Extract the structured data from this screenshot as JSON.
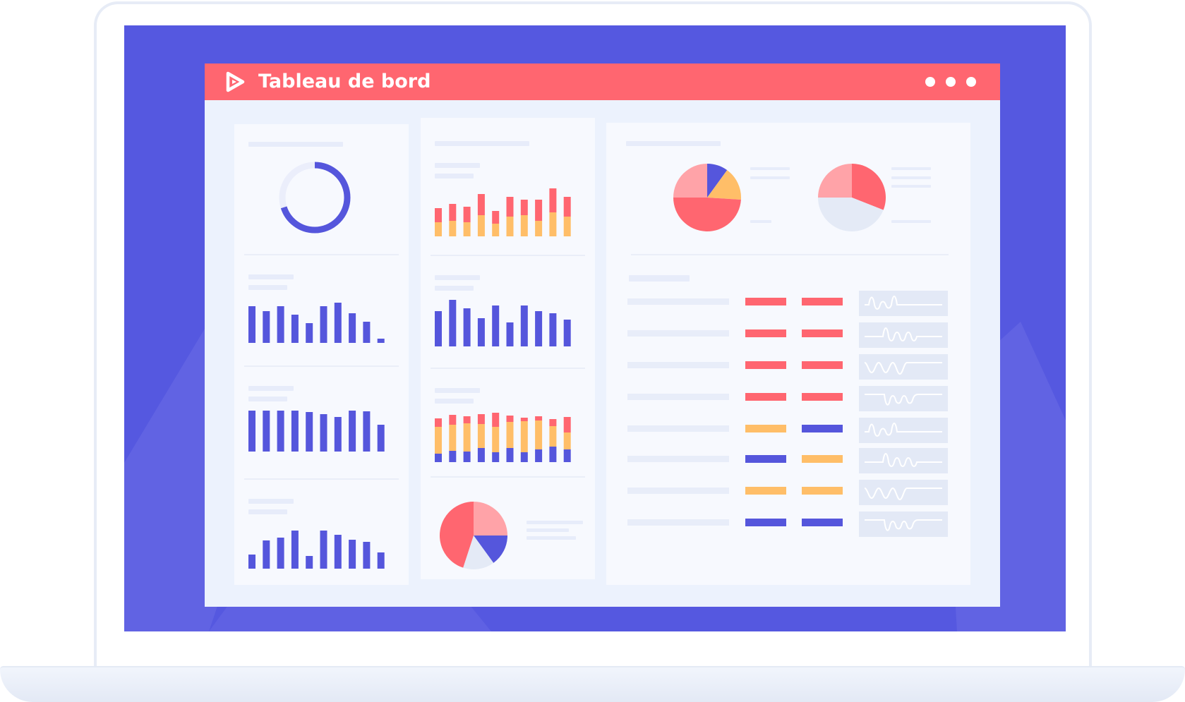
{
  "app": {
    "title": "Tableau de bord",
    "logo_icon": "play-triangle-icon",
    "menu_icon": "more-horizontal-icon"
  },
  "colors": {
    "screen": "#5558e0",
    "title_bar": "#ff6670",
    "indigo": "#5556dc",
    "red": "#ff6670",
    "pink": "#ffa3a8",
    "orange": "#ffbe68",
    "pale": "#e4eaf6",
    "track": "#ebeefb"
  },
  "chart_data": [
    {
      "type": "pie",
      "id": "left-donut",
      "values": [
        70,
        30
      ],
      "note_fill": 0.7
    },
    {
      "type": "bar",
      "id": "left-bars-1",
      "values": [
        52,
        45,
        52,
        40,
        28,
        52,
        57,
        42,
        30,
        6
      ]
    },
    {
      "type": "bar",
      "id": "left-bars-2",
      "values": [
        58,
        58,
        58,
        58,
        56,
        53,
        49,
        58,
        57,
        38
      ]
    },
    {
      "type": "bar",
      "id": "left-bars-3",
      "values": [
        20,
        40,
        44,
        54,
        18,
        54,
        48,
        41,
        38,
        23
      ]
    },
    {
      "type": "bar",
      "id": "mid-stacked-1",
      "stacked": true,
      "series": [
        {
          "color": "orange",
          "values": [
            20,
            22,
            20,
            30,
            18,
            28,
            30,
            22,
            34,
            28
          ]
        },
        {
          "color": "red",
          "values": [
            20,
            24,
            22,
            30,
            18,
            28,
            22,
            30,
            34,
            28
          ]
        }
      ]
    },
    {
      "type": "bar",
      "id": "mid-bars-2",
      "values": [
        50,
        66,
        54,
        40,
        58,
        34,
        58,
        50,
        47,
        38
      ]
    },
    {
      "type": "bar",
      "id": "mid-stacked-3",
      "stacked": true,
      "series": [
        {
          "color": "indigo",
          "values": [
            12,
            16,
            15,
            20,
            14,
            20,
            14,
            18,
            22,
            18
          ]
        },
        {
          "color": "orange",
          "values": [
            38,
            37,
            40,
            34,
            36,
            37,
            44,
            41,
            29,
            24
          ]
        },
        {
          "color": "red",
          "values": [
            12,
            14,
            10,
            14,
            20,
            9,
            5,
            6,
            10,
            22
          ]
        }
      ]
    },
    {
      "type": "pie",
      "id": "mid-pie",
      "series": [
        {
          "color": "pink",
          "value": 25
        },
        {
          "color": "indigo",
          "value": 15
        },
        {
          "color": "pale",
          "value": 15
        },
        {
          "color": "red",
          "value": 45
        }
      ]
    },
    {
      "type": "pie",
      "id": "right-pie-1",
      "series": [
        {
          "color": "indigo",
          "value": 10
        },
        {
          "color": "orange",
          "value": 16
        },
        {
          "color": "red",
          "value": 49
        },
        {
          "color": "pink",
          "value": 25
        }
      ]
    },
    {
      "type": "pie",
      "id": "right-pie-2",
      "series": [
        {
          "color": "red",
          "value": 31
        },
        {
          "color": "pale",
          "value": 44
        },
        {
          "color": "pink",
          "value": 25
        }
      ]
    },
    {
      "type": "table",
      "id": "right-table",
      "rows": [
        {
          "bars": [
            "red",
            "red"
          ],
          "wave": "a"
        },
        {
          "bars": [
            "red",
            "red"
          ],
          "wave": "b"
        },
        {
          "bars": [
            "red",
            "red"
          ],
          "wave": "c"
        },
        {
          "bars": [
            "red",
            "red"
          ],
          "wave": "d"
        },
        {
          "bars": [
            "orange",
            "indigo"
          ],
          "wave": "a"
        },
        {
          "bars": [
            "indigo",
            "orange"
          ],
          "wave": "b"
        },
        {
          "bars": [
            "orange",
            "orange"
          ],
          "wave": "c"
        },
        {
          "bars": [
            "indigo",
            "indigo"
          ],
          "wave": "d"
        }
      ]
    }
  ]
}
